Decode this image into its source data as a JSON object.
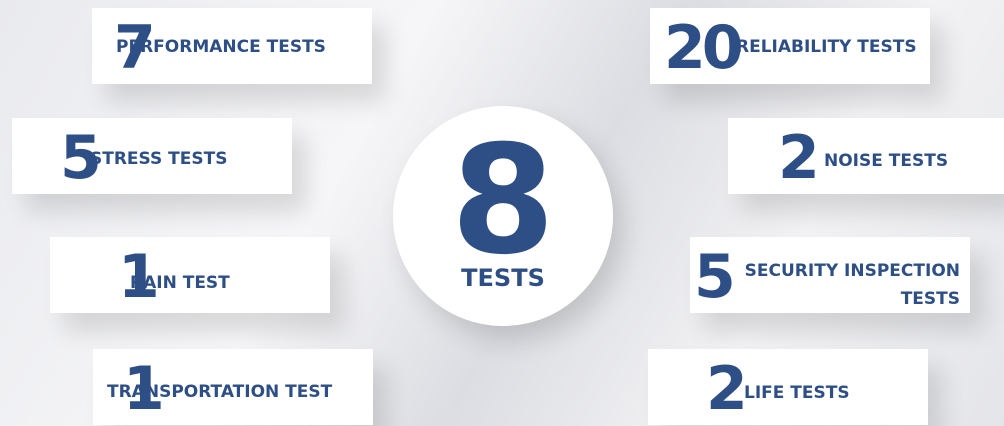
{
  "center": {
    "number": 8,
    "label": "TESTS"
  },
  "items": [
    {
      "number": 7,
      "label": "PERFORMANCE TESTS"
    },
    {
      "number": 5,
      "label": "STRESS TESTS"
    },
    {
      "number": 1,
      "label": "RAIN TEST"
    },
    {
      "number": 1,
      "label": "TRANSPORTATION TEST"
    },
    {
      "number": 20,
      "label": "RELIABILITY TESTS"
    },
    {
      "number": 2,
      "label": "NOISE TESTS"
    },
    {
      "number": 5,
      "label": "SECURITY INSPECTION TESTS"
    },
    {
      "number": 2,
      "label": "LIFE TESTS"
    }
  ]
}
